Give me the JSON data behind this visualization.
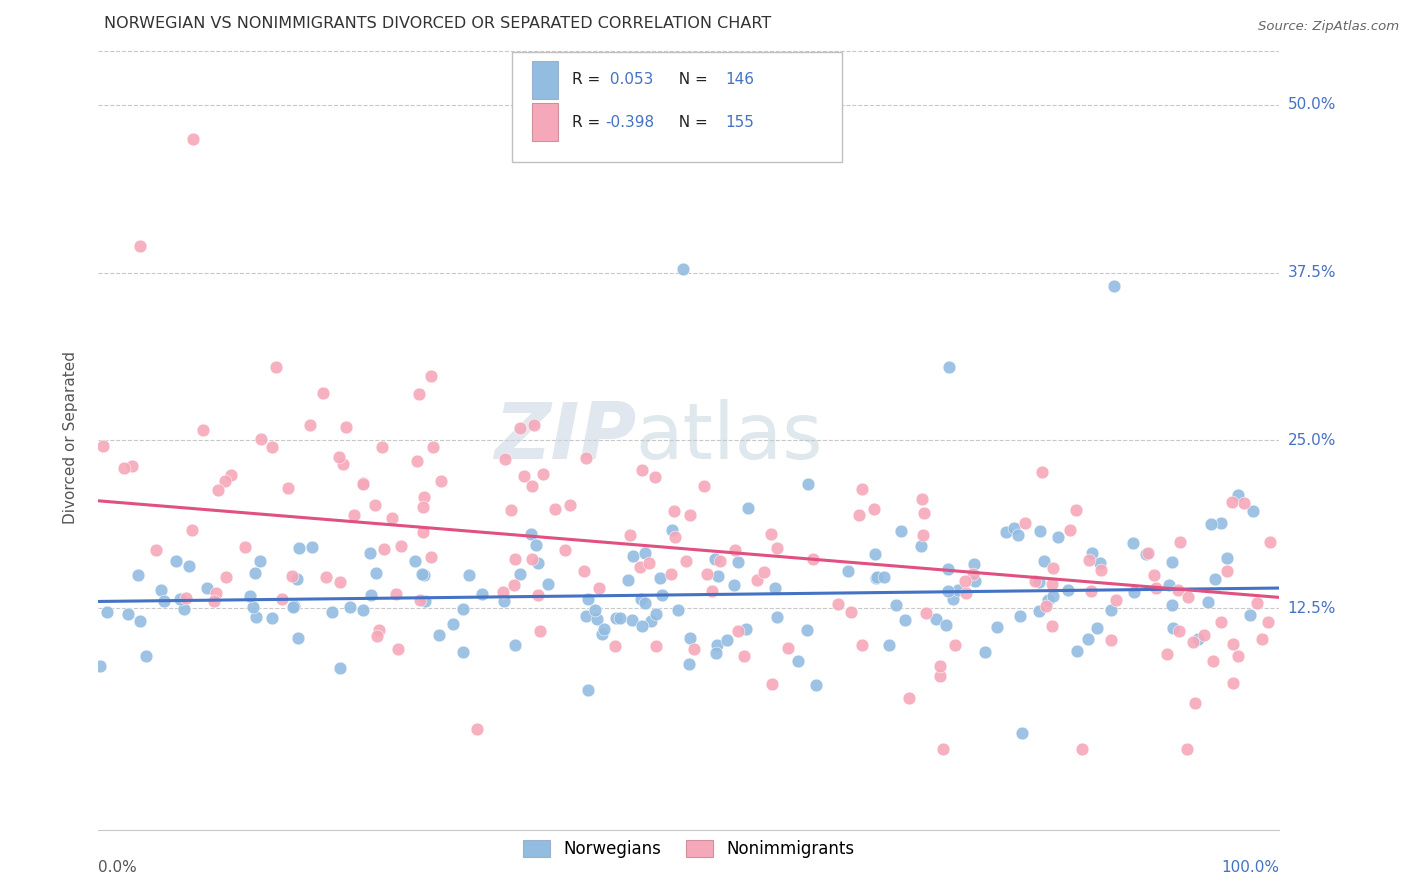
{
  "title": "NORWEGIAN VS NONIMMIGRANTS DIVORCED OR SEPARATED CORRELATION CHART",
  "source": "Source: ZipAtlas.com",
  "ylabel": "Divorced or Separated",
  "yticks": [
    "12.5%",
    "25.0%",
    "37.5%",
    "50.0%"
  ],
  "ytick_vals": [
    0.125,
    0.25,
    0.375,
    0.5
  ],
  "xlim": [
    0.0,
    1.0
  ],
  "ylim": [
    -0.04,
    0.545
  ],
  "legend_label_blue": "Norwegians",
  "legend_label_pink": "Nonimmigrants",
  "watermark_zip": "ZIP",
  "watermark_atlas": "atlas",
  "blue_color": "#92bce0",
  "pink_color": "#f5a8ba",
  "blue_line_color": "#4472c4",
  "pink_line_color": "#e05080",
  "R_blue": 0.053,
  "N_blue": 146,
  "R_pink": -0.398,
  "N_pink": 155,
  "blue_intercept": 0.13,
  "blue_slope": 0.01,
  "pink_intercept": 0.205,
  "pink_slope": -0.072,
  "seed": 7
}
